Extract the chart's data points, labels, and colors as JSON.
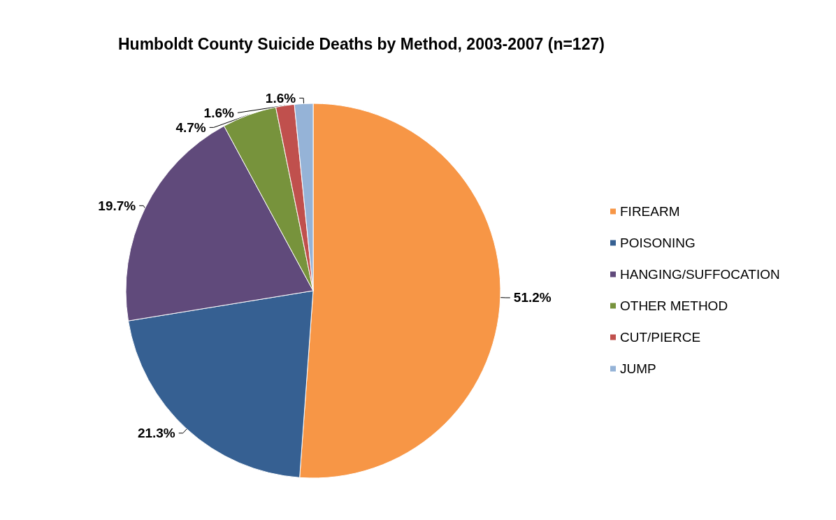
{
  "chart_data": {
    "type": "pie",
    "title": "Humboldt County Suicide Deaths by Method, 2003-2007 (n=127)",
    "categories": [
      "FIREARM",
      "POISONING",
      "HANGING/SUFFOCATION",
      "OTHER METHOD",
      "CUT/PIERCE",
      "JUMP"
    ],
    "values": [
      51.2,
      21.3,
      19.7,
      4.7,
      1.6,
      1.6
    ],
    "value_labels": [
      "51.2%",
      "21.3%",
      "19.7%",
      "4.7%",
      "1.6%",
      "1.6%"
    ],
    "colors": [
      "#f79646",
      "#366092",
      "#604a7b",
      "#77933c",
      "#c0504d",
      "#95b3d7"
    ],
    "legend": "right"
  }
}
